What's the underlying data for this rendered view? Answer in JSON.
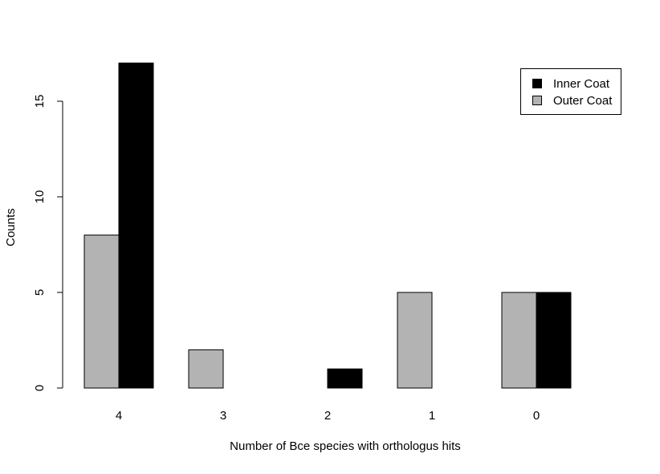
{
  "chart_data": {
    "type": "bar",
    "title": "",
    "xlabel": "Number of Bce species with orthologus hits",
    "ylabel": "Counts",
    "categories": [
      "4",
      "3",
      "2",
      "1",
      "0"
    ],
    "series": [
      {
        "name": "Outer Coat",
        "color": "#b3b3b3",
        "values": [
          8,
          2,
          0,
          5,
          5
        ]
      },
      {
        "name": "Inner Coat",
        "color": "#000000",
        "values": [
          17,
          0,
          1,
          0,
          5
        ]
      }
    ],
    "yticks": [
      0,
      5,
      10,
      15
    ],
    "ylim": [
      0,
      17
    ],
    "grid": false,
    "legend": {
      "position": "top-right",
      "entries": [
        {
          "label": "Inner Coat",
          "color": "#000000"
        },
        {
          "label": "Outer Coat",
          "color": "#b3b3b3"
        }
      ]
    }
  }
}
